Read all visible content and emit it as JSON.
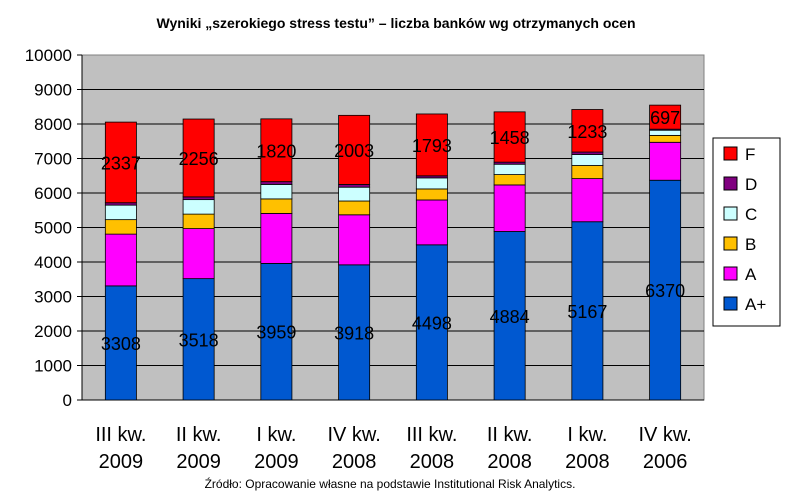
{
  "chart_data": {
    "type": "bar",
    "stacked": true,
    "title": "Wyniki „szerokiego stress testu” – liczba banków wg otrzymanych ocen",
    "source": "Źródło: Opracowanie własne na podstawie Institutional Risk Analytics.",
    "categories": [
      [
        "III kw.",
        "2009"
      ],
      [
        "II kw.",
        "2009"
      ],
      [
        "I kw.",
        "2009"
      ],
      [
        "IV kw.",
        "2008"
      ],
      [
        "III kw.",
        "2008"
      ],
      [
        "II kw.",
        "2008"
      ],
      [
        "I kw.",
        "2008"
      ],
      [
        "IV kw.",
        "2006"
      ]
    ],
    "ylim": [
      0,
      10000
    ],
    "yticks": [
      0,
      1000,
      2000,
      3000,
      4000,
      5000,
      6000,
      7000,
      8000,
      9000,
      10000
    ],
    "grid": true,
    "legend_position": "right",
    "series": [
      {
        "name": "A+",
        "color": "#0058d0",
        "values": [
          3308,
          3518,
          3959,
          3918,
          4498,
          4884,
          5167,
          6370
        ],
        "labeled": true
      },
      {
        "name": "A",
        "color": "#ff00ff",
        "values": [
          1500,
          1450,
          1450,
          1450,
          1300,
          1350,
          1250,
          1100
        ],
        "labeled": false
      },
      {
        "name": "B",
        "color": "#ffc000",
        "values": [
          420,
          420,
          420,
          400,
          320,
          300,
          380,
          200
        ],
        "labeled": false
      },
      {
        "name": "C",
        "color": "#ccffff",
        "values": [
          420,
          420,
          420,
          400,
          320,
          300,
          320,
          150
        ],
        "labeled": false
      },
      {
        "name": "D",
        "color": "#800080",
        "values": [
          70,
          80,
          80,
          80,
          60,
          60,
          70,
          30
        ],
        "labeled": false
      },
      {
        "name": "F",
        "color": "#ff0000",
        "values": [
          2337,
          2256,
          1820,
          2003,
          1793,
          1458,
          1233,
          697
        ],
        "labeled": true
      }
    ]
  }
}
